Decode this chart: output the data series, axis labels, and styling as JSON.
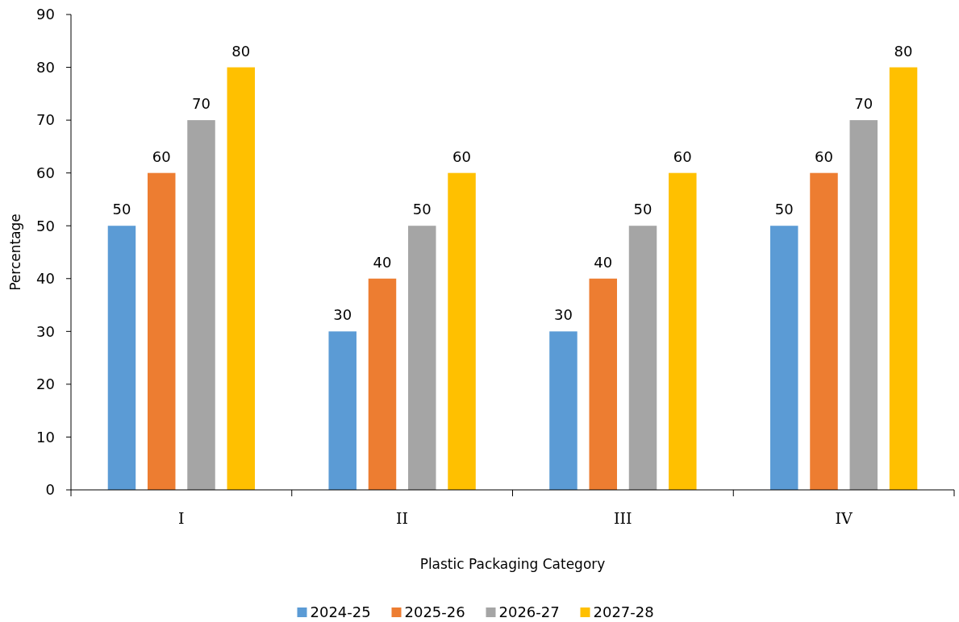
{
  "chart_data": {
    "type": "bar",
    "xlabel": "Plastic Packaging Category",
    "ylabel": "Percentage",
    "categories": [
      "I",
      "II",
      "III",
      "IV"
    ],
    "series": [
      {
        "name": "2024-25",
        "color": "#5b9bd5",
        "values": [
          50,
          30,
          30,
          50
        ]
      },
      {
        "name": "2025-26",
        "color": "#ed7d31",
        "values": [
          60,
          40,
          40,
          60
        ]
      },
      {
        "name": "2026-27",
        "color": "#a5a5a5",
        "values": [
          70,
          50,
          50,
          70
        ]
      },
      {
        "name": "2027-28",
        "color": "#ffc000",
        "values": [
          80,
          60,
          60,
          80
        ]
      }
    ],
    "ylim": [
      0,
      90
    ],
    "yticks": [
      0,
      10,
      20,
      30,
      40,
      50,
      60,
      70,
      80,
      90
    ],
    "grid": false,
    "legend": "bottom",
    "data_labels": true
  }
}
